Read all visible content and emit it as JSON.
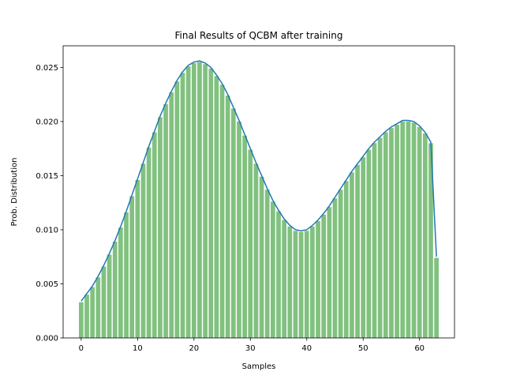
{
  "chart_data": {
    "type": "bar",
    "title": "Final Results of QCBM after training",
    "xlabel": "Samples",
    "ylabel": "Prob. Distribution",
    "xlim": [
      -3.2,
      66.2
    ],
    "ylim": [
      0,
      0.027
    ],
    "xticks": [
      0,
      10,
      20,
      30,
      40,
      50,
      60
    ],
    "yticks": [
      0.0,
      0.005,
      0.01,
      0.015,
      0.02,
      0.025
    ],
    "ytick_labels": [
      "0.000",
      "0.005",
      "0.010",
      "0.015",
      "0.020",
      "0.025"
    ],
    "grid": false,
    "legend": "none",
    "colors": {
      "bars": "#81c17f",
      "line": "#1f77b4"
    },
    "line_series": [
      {
        "values": [
          0.0034,
          0.0041,
          0.0048,
          0.0057,
          0.0067,
          0.0078,
          0.009,
          0.0103,
          0.0117,
          0.0132,
          0.0147,
          0.0162,
          0.0177,
          0.0191,
          0.0205,
          0.0217,
          0.0228,
          0.0238,
          0.0246,
          0.0252,
          0.0255,
          0.0256,
          0.0254,
          0.025,
          0.0243,
          0.0235,
          0.0225,
          0.0213,
          0.0201,
          0.0188,
          0.0175,
          0.0162,
          0.015,
          0.0138,
          0.0127,
          0.0118,
          0.011,
          0.0104,
          0.01,
          0.0099,
          0.01,
          0.0104,
          0.0109,
          0.0115,
          0.0122,
          0.013,
          0.0138,
          0.0146,
          0.0154,
          0.0161,
          0.0168,
          0.0175,
          0.0181,
          0.0186,
          0.0191,
          0.0195,
          0.0198,
          0.0201,
          0.0201,
          0.02,
          0.0196,
          0.019,
          0.0181,
          0.0075
        ]
      }
    ],
    "bar_series": [
      {
        "values": [
          0.0033,
          0.004,
          0.0047,
          0.0056,
          0.0066,
          0.0077,
          0.0089,
          0.0102,
          0.0116,
          0.0131,
          0.0146,
          0.0161,
          0.0176,
          0.019,
          0.0204,
          0.0216,
          0.0227,
          0.0237,
          0.0245,
          0.0251,
          0.0254,
          0.0255,
          0.0253,
          0.0249,
          0.0242,
          0.0234,
          0.0224,
          0.0212,
          0.02,
          0.0187,
          0.0174,
          0.0161,
          0.0149,
          0.0137,
          0.0126,
          0.0117,
          0.0109,
          0.0103,
          0.0099,
          0.0098,
          0.0099,
          0.0103,
          0.0108,
          0.0114,
          0.0121,
          0.0129,
          0.0137,
          0.0145,
          0.0153,
          0.016,
          0.0167,
          0.0174,
          0.018,
          0.0185,
          0.019,
          0.0194,
          0.0197,
          0.02,
          0.02,
          0.0199,
          0.0195,
          0.0189,
          0.018,
          0.0074
        ]
      }
    ]
  }
}
